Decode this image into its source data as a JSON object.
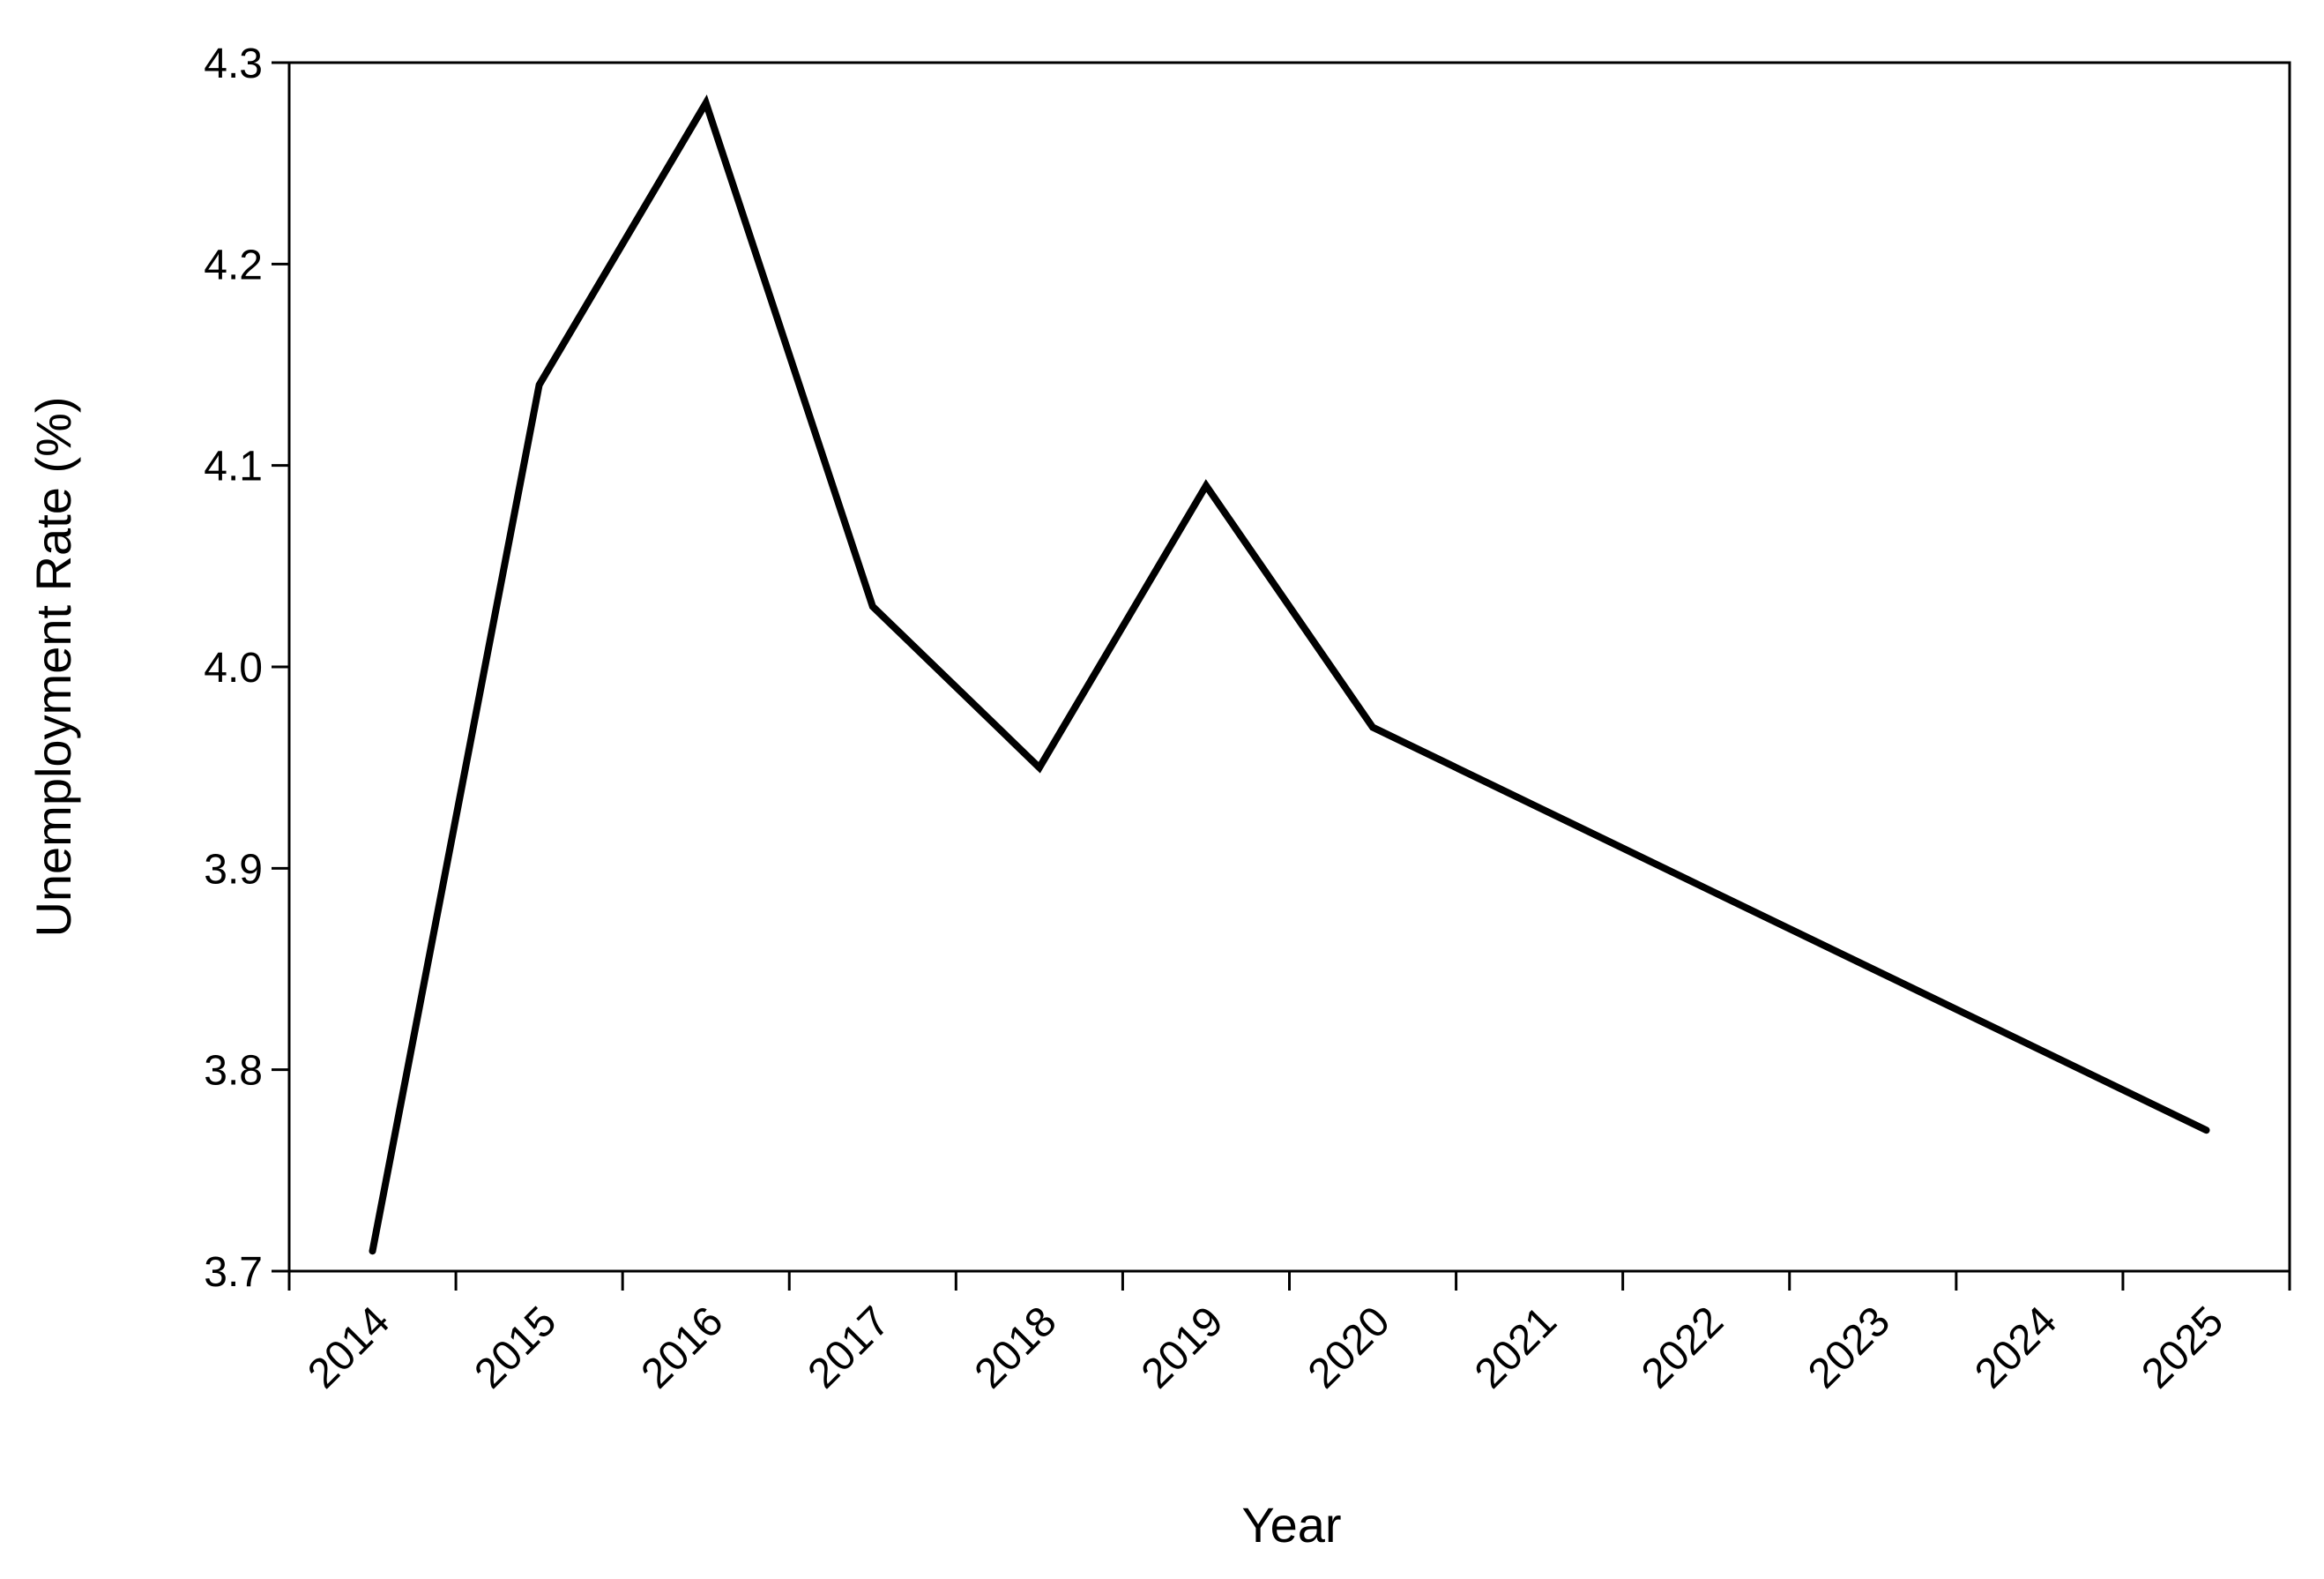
{
  "chart_data": {
    "type": "line",
    "x_label": "Year",
    "y_label": "Unemployment Rate (%)",
    "categories": [
      "2014",
      "2015",
      "2016",
      "2017",
      "2018",
      "2019",
      "2020",
      "2021",
      "2022",
      "2023",
      "2024",
      "2025"
    ],
    "values": [
      3.71,
      4.14,
      4.28,
      4.03,
      3.95,
      4.09,
      3.97,
      3.93,
      3.89,
      3.85,
      3.81,
      3.77
    ],
    "color": "#000000",
    "ylim": [
      3.7,
      4.3
    ],
    "yticks": [
      3.7,
      3.8,
      3.9,
      {
        "value": 4,
        "label": "4.0"
      },
      4.1,
      4.2,
      4.3
    ],
    "grid": false
  }
}
